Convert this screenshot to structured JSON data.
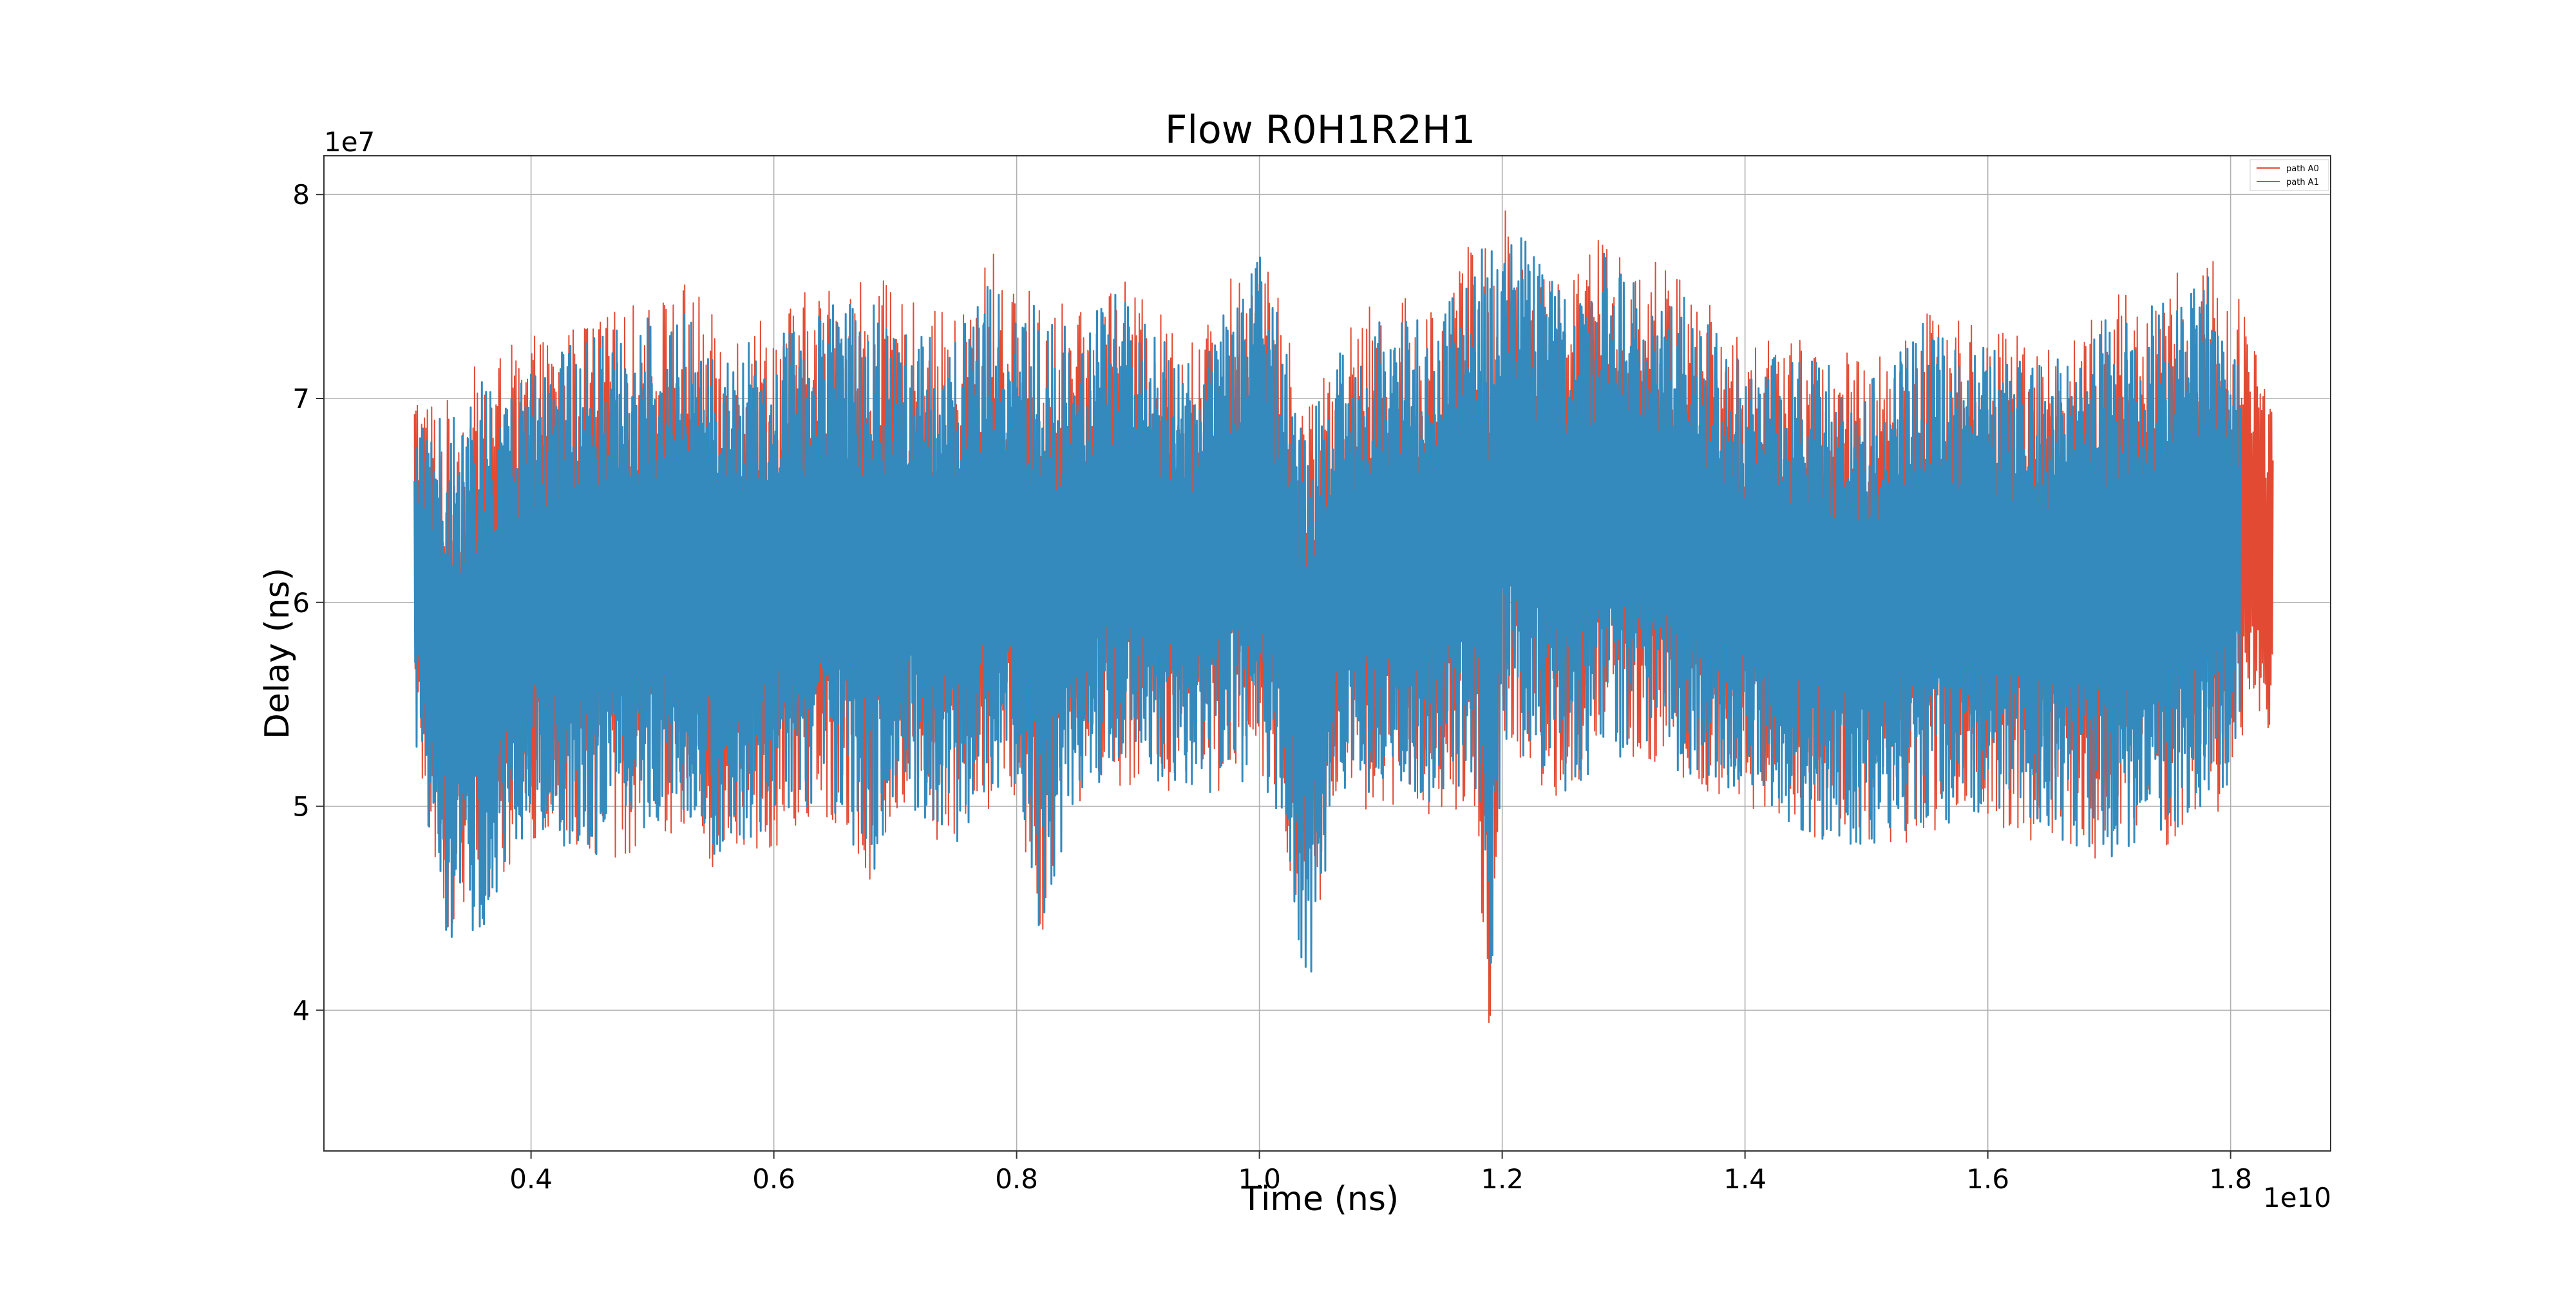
{
  "chart_data": {
    "type": "line",
    "title": "Flow R0H1R2H1",
    "xlabel": "Time (ns)",
    "ylabel": "Delay (ns)",
    "x_offset_label": "1e10",
    "y_offset_label": "1e7",
    "xlim": [
      0.2294,
      1.8824
    ],
    "ylim": [
      3.31,
      8.19
    ],
    "x_ticks": [
      0.4,
      0.6,
      0.8,
      1.0,
      1.2,
      1.4,
      1.6,
      1.8
    ],
    "x_tick_labels": [
      "0.4",
      "0.6",
      "0.8",
      "1.0",
      "1.2",
      "1.4",
      "1.6",
      "1.8"
    ],
    "y_ticks": [
      4,
      5,
      6,
      7,
      8
    ],
    "y_tick_labels": [
      "4",
      "5",
      "6",
      "7",
      "8"
    ],
    "grid": true,
    "legend_position": "top-right",
    "series": [
      {
        "name": "path A0",
        "color": "#e24a33",
        "x_range": [
          0.304,
          1.835
        ],
        "envelope_x": [
          0.304,
          0.33,
          0.36,
          0.4,
          0.45,
          0.5,
          0.53,
          0.55,
          0.6,
          0.65,
          0.68,
          0.7,
          0.75,
          0.78,
          0.8,
          0.82,
          0.85,
          0.88,
          0.9,
          0.95,
          1.0,
          1.02,
          1.04,
          1.06,
          1.1,
          1.15,
          1.18,
          1.19,
          1.2,
          1.25,
          1.29,
          1.35,
          1.4,
          1.45,
          1.5,
          1.55,
          1.6,
          1.65,
          1.7,
          1.75,
          1.79,
          1.8,
          1.81,
          1.82,
          1.835
        ],
        "envelope_min": [
          5.2,
          4.4,
          4.5,
          4.8,
          4.7,
          4.8,
          4.9,
          4.7,
          4.8,
          4.9,
          4.55,
          5.0,
          4.75,
          5.0,
          5.0,
          4.35,
          5.0,
          5.1,
          5.1,
          5.0,
          5.1,
          4.8,
          4.05,
          4.9,
          5.0,
          4.95,
          4.9,
          3.55,
          5.3,
          5.0,
          5.2,
          5.1,
          5.0,
          4.8,
          4.75,
          4.85,
          4.9,
          4.8,
          4.7,
          4.8,
          4.9,
          5.2,
          5.3,
          5.3,
          5.3
        ],
        "envelope_max": [
          7.1,
          7.0,
          7.2,
          7.3,
          7.4,
          7.5,
          7.6,
          7.4,
          7.45,
          7.6,
          7.66,
          7.5,
          7.4,
          7.75,
          7.5,
          7.6,
          7.4,
          7.65,
          7.5,
          7.3,
          7.85,
          7.4,
          7.0,
          7.3,
          7.5,
          7.5,
          7.85,
          7.9,
          7.98,
          7.6,
          7.85,
          7.6,
          7.3,
          7.3,
          7.2,
          7.5,
          7.35,
          7.3,
          7.5,
          7.6,
          7.8,
          7.3,
          7.6,
          7.35,
          7.0
        ]
      },
      {
        "name": "path A1",
        "color": "#348abd",
        "x_range": [
          0.304,
          1.808
        ],
        "envelope_x": [
          0.304,
          0.33,
          0.36,
          0.4,
          0.45,
          0.5,
          0.53,
          0.55,
          0.6,
          0.65,
          0.68,
          0.7,
          0.75,
          0.78,
          0.8,
          0.82,
          0.85,
          0.88,
          0.9,
          0.95,
          1.0,
          1.02,
          1.04,
          1.06,
          1.1,
          1.15,
          1.18,
          1.19,
          1.2,
          1.25,
          1.29,
          1.35,
          1.4,
          1.45,
          1.5,
          1.55,
          1.6,
          1.65,
          1.7,
          1.75,
          1.79,
          1.808
        ],
        "envelope_min": [
          5.3,
          4.3,
          4.4,
          4.85,
          4.75,
          4.85,
          4.95,
          4.75,
          4.85,
          4.95,
          4.6,
          5.05,
          4.8,
          5.05,
          5.05,
          4.3,
          5.05,
          5.15,
          5.15,
          5.05,
          5.15,
          4.85,
          4.02,
          4.95,
          5.05,
          5.0,
          4.95,
          3.52,
          5.35,
          5.05,
          5.25,
          5.15,
          5.05,
          4.85,
          4.8,
          4.9,
          4.95,
          4.85,
          4.75,
          4.85,
          4.95,
          5.3
        ],
        "envelope_max": [
          7.0,
          6.9,
          7.1,
          7.2,
          7.3,
          7.4,
          7.5,
          7.3,
          7.35,
          7.5,
          7.55,
          7.4,
          7.3,
          7.65,
          7.4,
          7.5,
          7.3,
          7.55,
          7.4,
          7.2,
          7.75,
          7.3,
          6.9,
          7.2,
          7.4,
          7.4,
          7.75,
          7.8,
          7.95,
          7.5,
          7.8,
          7.5,
          7.2,
          7.2,
          7.1,
          7.4,
          7.25,
          7.2,
          7.4,
          7.5,
          7.7,
          7.2
        ]
      }
    ]
  }
}
